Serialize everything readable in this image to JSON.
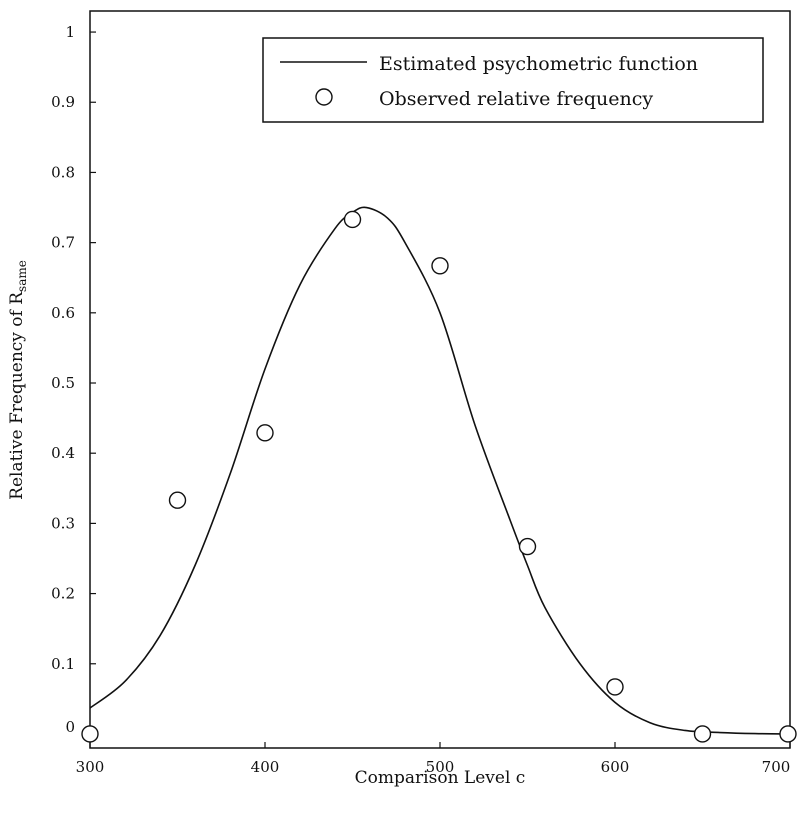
{
  "chart_data": {
    "type": "line",
    "xlabel": "Comparison Level c",
    "ylabel_main": "Relative Frequency of R",
    "ylabel_sub": "same",
    "xlim": [
      300,
      700
    ],
    "ylim": [
      -0.02,
      1.03
    ],
    "xticks": [
      300,
      400,
      500,
      600,
      700
    ],
    "xtick_labels": [
      "300",
      "400",
      "500",
      "600",
      "700"
    ],
    "yticks": [
      0,
      0.1,
      0.2,
      0.3,
      0.4,
      0.5,
      0.6,
      0.7,
      0.8,
      0.9,
      1
    ],
    "ytick_labels": [
      "0",
      "0.1",
      "0.2",
      "0.3",
      "0.4",
      "0.5",
      "0.6",
      "0.7",
      "0.8",
      "0.9",
      "1"
    ],
    "grid": false,
    "legend_position": "top-right",
    "series": [
      {
        "name": "Estimated psychometric function",
        "kind": "line",
        "color": "#111111",
        "x": [
          300,
          320,
          340,
          360,
          380,
          400,
          420,
          440,
          450,
          458,
          470,
          480,
          500,
          520,
          540,
          550,
          560,
          580,
          600,
          620,
          640,
          660,
          680,
          700
        ],
        "y": [
          0.037,
          0.075,
          0.14,
          0.24,
          0.37,
          0.52,
          0.64,
          0.72,
          0.743,
          0.75,
          0.735,
          0.7,
          0.6,
          0.44,
          0.305,
          0.24,
          0.18,
          0.1,
          0.045,
          0.016,
          0.005,
          0.002,
          0.0005,
          0.0
        ]
      },
      {
        "name": "Observed relative frequency",
        "kind": "scatter",
        "marker": "open-circle",
        "color": "#111111",
        "x": [
          300,
          350,
          400,
          450,
          500,
          550,
          600,
          650,
          700
        ],
        "y": [
          0.0,
          0.333,
          0.429,
          0.733,
          0.667,
          0.267,
          0.067,
          0.0,
          0.0
        ]
      }
    ]
  }
}
